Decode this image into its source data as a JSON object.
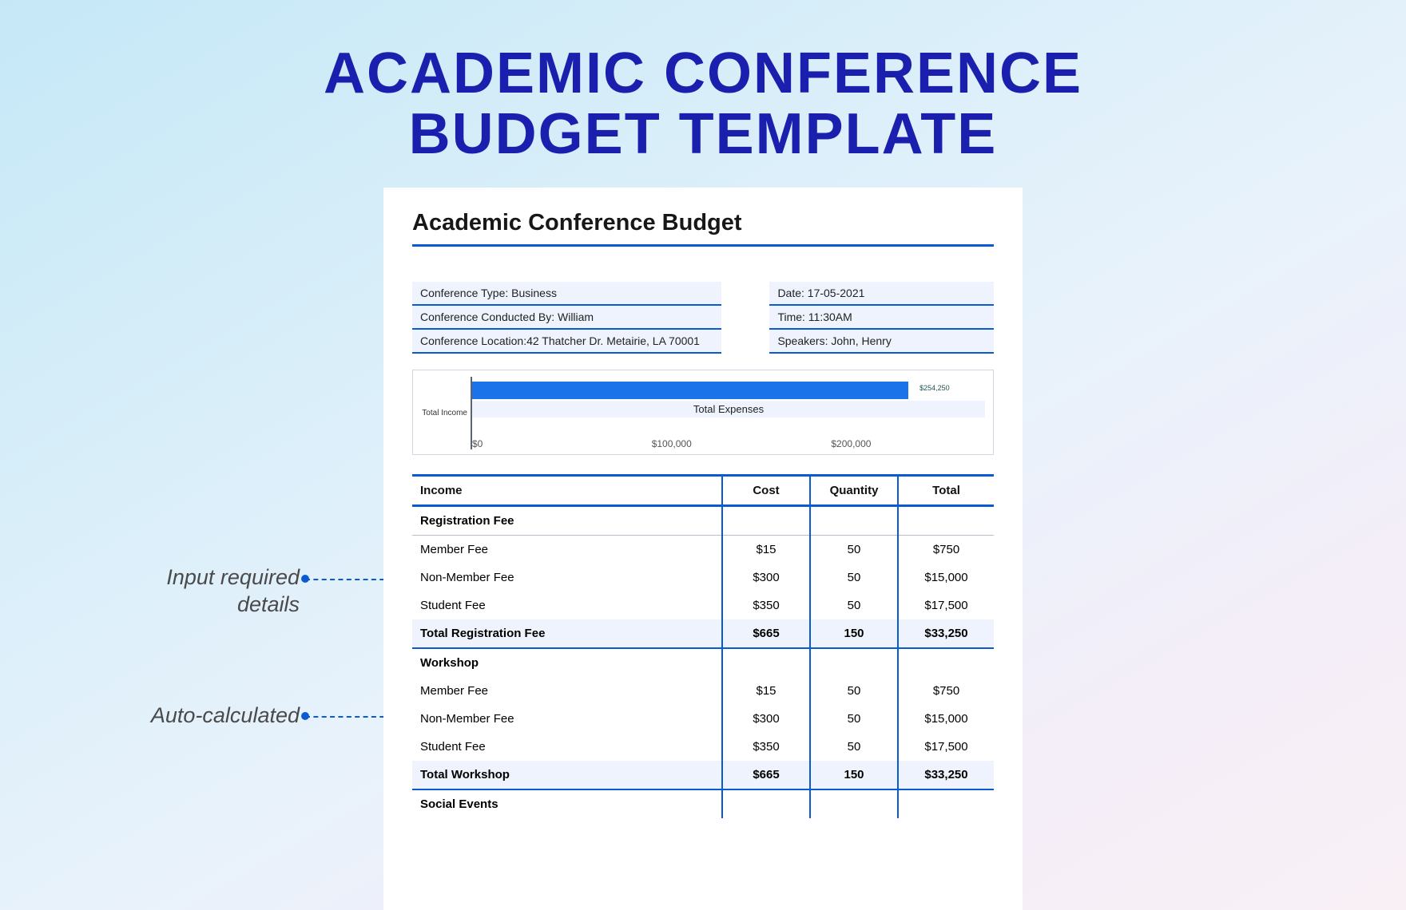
{
  "page": {
    "title_line1": "ACADEMIC CONFERENCE",
    "title_line2": "BUDGET TEMPLATE"
  },
  "callouts": {
    "input_l1": "Input required",
    "input_l2": "details",
    "auto": "Auto-calculated"
  },
  "doc": {
    "title": "Academic Conference Budget",
    "meta": {
      "type": "Conference Type: Business",
      "conducted_by": "Conference Conducted By: William",
      "location": "Conference Location:42 Thatcher Dr. Metairie, LA 70001",
      "date": "Date: 17-05-2021",
      "time": "Time: 11:30AM",
      "speakers": "Speakers: John, Henry"
    },
    "chart": {
      "type": "horizontal_bar",
      "ylabel": "Total Income",
      "legend": "Total Expenses",
      "bar_color": "#1a73e8",
      "bar_value_label": "$254,250",
      "bar_width_percent": 85,
      "x_ticks": [
        "$0",
        "$100,000",
        "$200,000"
      ],
      "xmax": 300000,
      "plot_bg": "#ffffff",
      "legend_bg": "#eef3fd",
      "border_color": "#d0d7e2"
    },
    "table": {
      "headers": {
        "name": "Income",
        "cost": "Cost",
        "qty": "Quantity",
        "total": "Total"
      },
      "sections": [
        {
          "label": "Registration Fee",
          "rows": [
            {
              "name": "Member Fee",
              "cost": "$15",
              "qty": "50",
              "total": "$750"
            },
            {
              "name": "Non-Member Fee",
              "cost": "$300",
              "qty": "50",
              "total": "$15,000"
            },
            {
              "name": "Student Fee",
              "cost": "$350",
              "qty": "50",
              "total": "$17,500"
            }
          ],
          "total": {
            "name": "Total Registration Fee",
            "cost": "$665",
            "qty": "150",
            "total": "$33,250"
          }
        },
        {
          "label": "Workshop",
          "rows": [
            {
              "name": "Member Fee",
              "cost": "$15",
              "qty": "50",
              "total": "$750"
            },
            {
              "name": "Non-Member Fee",
              "cost": "$300",
              "qty": "50",
              "total": "$15,000"
            },
            {
              "name": "Student Fee",
              "cost": "$350",
              "qty": "50",
              "total": "$17,500"
            }
          ],
          "total": {
            "name": "Total Workshop",
            "cost": "$665",
            "qty": "150",
            "total": "$33,250"
          }
        },
        {
          "label": "Social Events",
          "rows": [],
          "total": null
        }
      ]
    }
  },
  "colors": {
    "title": "#1a1fad",
    "accent": "#0a5bd1",
    "row_alt": "#eef3fd",
    "text": "#171717"
  }
}
